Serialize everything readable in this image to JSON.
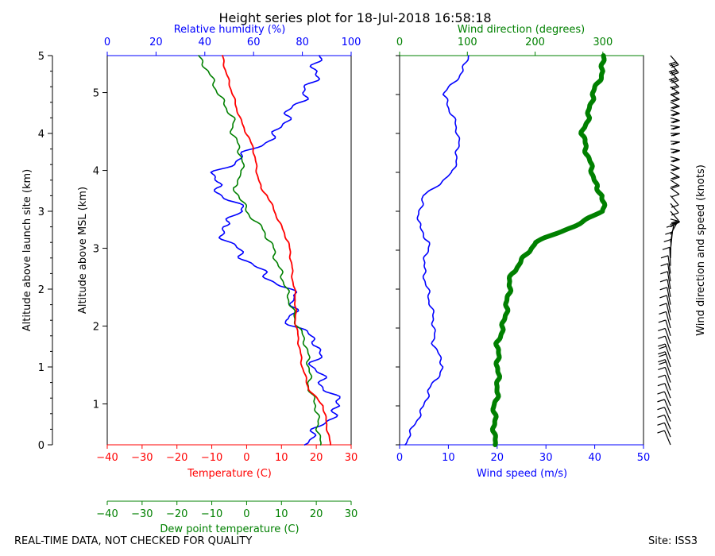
{
  "chart_data": {
    "type": "line",
    "title": "Height series plot for 18-Jul-2018 16:58:18",
    "footer_left": "REAL-TIME DATA, NOT CHECKED FOR QUALITY",
    "footer_right": "Site: ISS3",
    "colors": {
      "temperature": "#ff0000",
      "dewpoint": "#008000",
      "humidity": "#0000ff",
      "wind_speed": "#0000ff",
      "wind_direction": "#008000",
      "barbs": "#000000"
    },
    "altitude_launch_axis": {
      "label": "Altitude above launch site (km)",
      "range": [
        0,
        5
      ],
      "ticks": [
        0,
        1,
        2,
        3,
        4,
        5
      ]
    },
    "altitude_msl_axis": {
      "label": "Altitude above MSL (km)",
      "ticks": [
        1,
        2,
        3,
        4,
        5
      ]
    },
    "temperature_axis": {
      "label": "Temperature (C)",
      "range": [
        -40,
        30
      ],
      "ticks": [
        -40,
        -30,
        -20,
        -10,
        0,
        10,
        20,
        30
      ]
    },
    "dewpoint_axis": {
      "label": "Dew point temperature (C)",
      "range": [
        -40,
        30
      ],
      "ticks": [
        -40,
        -30,
        -20,
        -10,
        0,
        10,
        20,
        30
      ]
    },
    "humidity_axis": {
      "label": "Relative humidity (%)",
      "range": [
        0,
        100
      ],
      "ticks": [
        0,
        20,
        40,
        60,
        80,
        100
      ]
    },
    "wind_speed_axis": {
      "label": "Wind speed (m/s)",
      "range": [
        0,
        50
      ],
      "ticks": [
        0,
        10,
        20,
        30,
        40,
        50
      ]
    },
    "wind_direction_axis": {
      "label": "Wind direction (degrees)",
      "range": [
        0,
        360
      ],
      "ticks": [
        0,
        100,
        200,
        300
      ]
    },
    "barb_label": "Wind direction and speed (knots)",
    "altitude_km": [
      0.0,
      0.5,
      0.7,
      1.0,
      1.3,
      1.6,
      1.9,
      2.2,
      2.3,
      2.6,
      2.8,
      3.0,
      3.2,
      3.3,
      3.5,
      3.8,
      4.0,
      4.2,
      4.5,
      4.8,
      5.0
    ],
    "series": [
      {
        "name": "Temperature (C)",
        "values": [
          24,
          22,
          18,
          16,
          15,
          14,
          14,
          13,
          13,
          12,
          10,
          8,
          6,
          4,
          3,
          2,
          0,
          -2,
          -4,
          -6,
          -7
        ]
      },
      {
        "name": "Dew point temperature (C)",
        "values": [
          21,
          20,
          18,
          18,
          17,
          14,
          12,
          10,
          9,
          7,
          4,
          0,
          -2,
          -4,
          -1,
          -2,
          -4,
          -4,
          -8,
          -11,
          -14
        ]
      },
      {
        "name": "Relative humidity (%)",
        "values": [
          80,
          96,
          90,
          85,
          87,
          74,
          78,
          64,
          60,
          50,
          46,
          56,
          48,
          44,
          45,
          60,
          70,
          73,
          81,
          86,
          86
        ]
      },
      {
        "name": "Wind speed (m/s)",
        "values": [
          1,
          5,
          6,
          9,
          7,
          7,
          6,
          5,
          5,
          6,
          4,
          4,
          5,
          7,
          11,
          12,
          12,
          11,
          9,
          13,
          14
        ]
      },
      {
        "name": "Wind direction (degrees)",
        "values": [
          140,
          140,
          145,
          145,
          145,
          155,
          160,
          165,
          175,
          200,
          255,
          300,
          300,
          290,
          285,
          275,
          270,
          278,
          285,
          300,
          300
        ]
      }
    ]
  }
}
